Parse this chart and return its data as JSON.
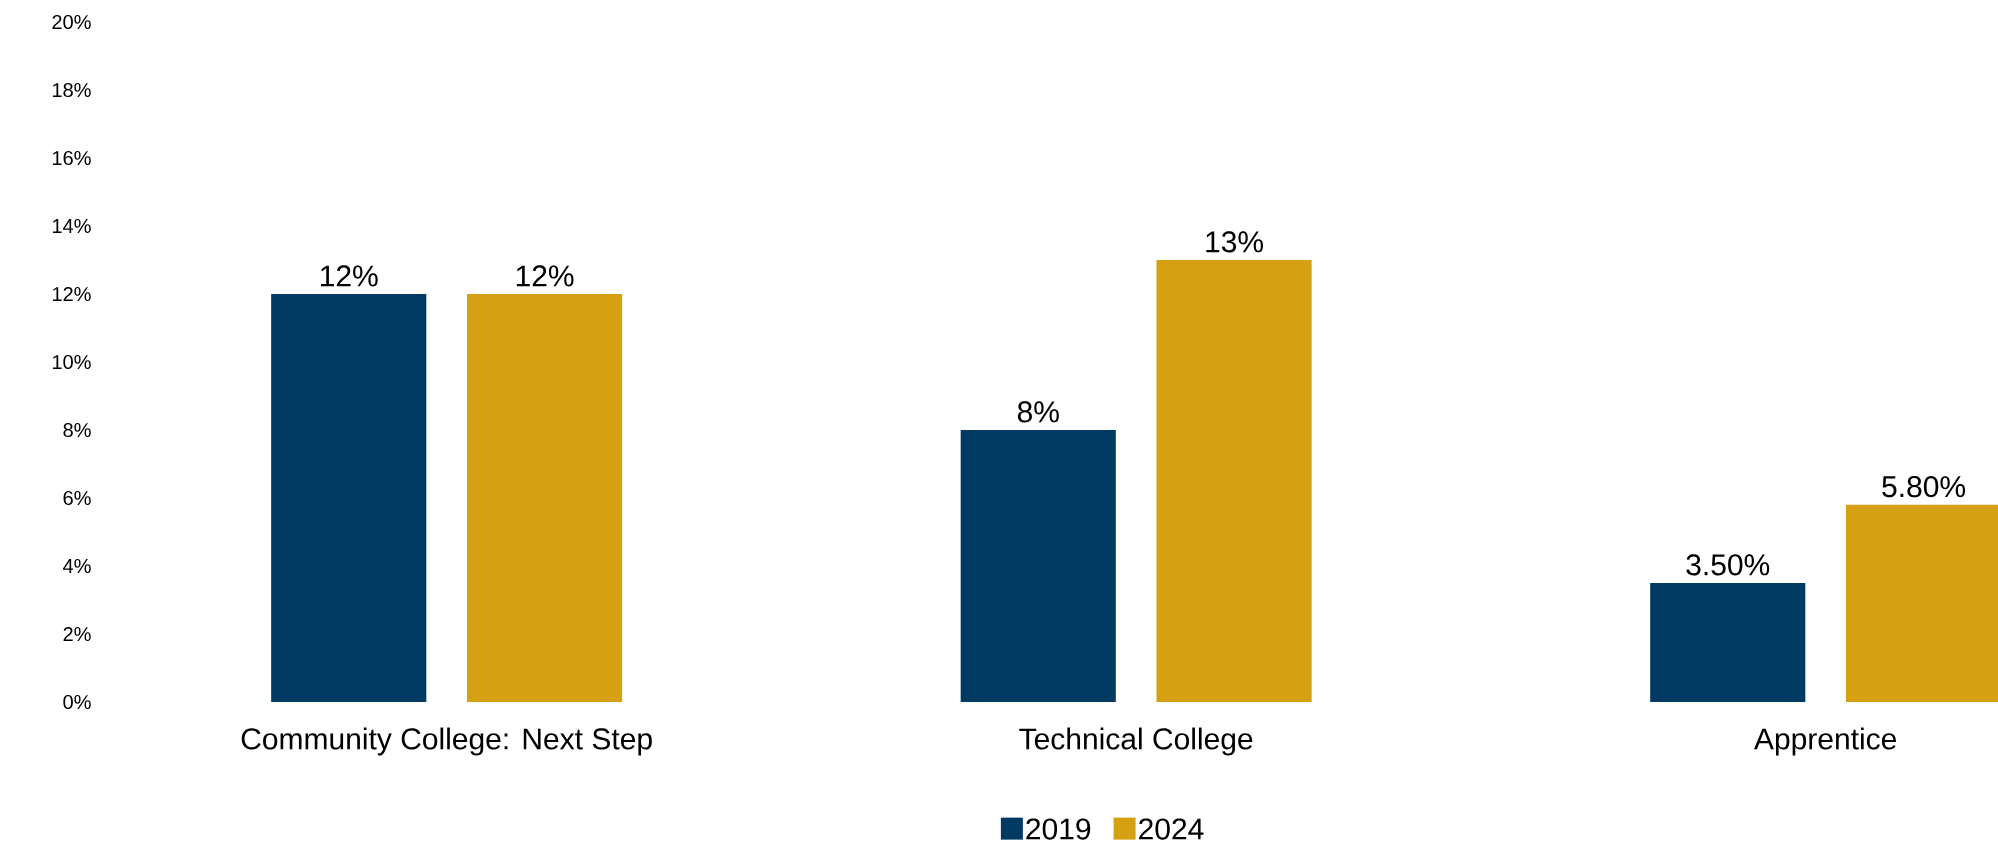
{
  "chart_data": {
    "type": "bar",
    "categories": [
      "Community College: Next Step",
      "Technical College",
      "Apprentice"
    ],
    "series": [
      {
        "name": "2019",
        "color": "#003a63",
        "values": [
          12,
          8,
          3.5
        ],
        "value_labels": [
          "12%",
          "8%",
          "3.50%"
        ]
      },
      {
        "name": "2024",
        "color": "#d5a011",
        "values": [
          12,
          13,
          5.8
        ],
        "value_labels": [
          "12%",
          "13%",
          "5.80%"
        ]
      }
    ],
    "ylim": [
      0,
      20
    ],
    "yticks": [
      {
        "value": 0,
        "label": "0%"
      },
      {
        "value": 2,
        "label": "2%"
      },
      {
        "value": 4,
        "label": "4%"
      },
      {
        "value": 6,
        "label": "6%"
      },
      {
        "value": 8,
        "label": "8%"
      },
      {
        "value": 10,
        "label": "10%"
      },
      {
        "value": 12,
        "label": "12%"
      },
      {
        "value": 14,
        "label": "14%"
      },
      {
        "value": 16,
        "label": "16%"
      },
      {
        "value": 18,
        "label": "18%"
      },
      {
        "value": 20,
        "label": "20%"
      }
    ],
    "grid": false,
    "legend": "bottom"
  }
}
